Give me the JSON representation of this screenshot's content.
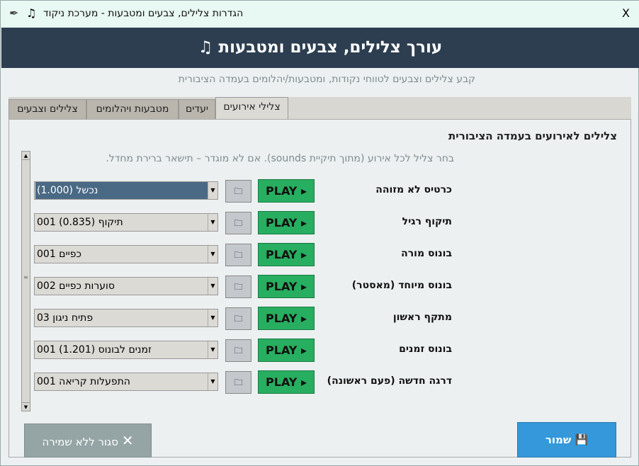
{
  "window": {
    "title": "הגדרות צלילים, צבעים ומטבעות - מערכת ניקוד",
    "close_label": "X"
  },
  "header": {
    "title": "עורך צלילים, צבעים ומטבעות"
  },
  "subtitle": "קבע צלילים וצבעים לטווחי נקודות, ומטבעות/יהלומים בעמדה הציבורית",
  "tabs": [
    {
      "label": "צלילים וצבעים"
    },
    {
      "label": "מטבעות ויהלומים"
    },
    {
      "label": "יעדים"
    },
    {
      "label": "צלילי אירועים",
      "active": true
    }
  ],
  "section": {
    "title": "צלילים לאירועים בעמדה הציבורית",
    "hint": ".אם לא מוגדר – תישאר ברירת מחדל .(sounds מתוך תיקיית) בחר צליל לכל אירוע"
  },
  "play_label": "PLAY ▸",
  "rows": [
    {
      "label": "כרטיס לא מזוהה",
      "value": "(1.000) נכשל"
    },
    {
      "label": "תיקוף רגיל",
      "value": "001 תיקוף (0.835)"
    },
    {
      "label": "בונוס מורה",
      "value": "001 כפיים"
    },
    {
      "label": "בונוס מיוחד (מאסטר)",
      "value": "002 סוערות כפיים"
    },
    {
      "label": "מתקף ראשון",
      "value": "03 פתיח ניגון"
    },
    {
      "label": "בונוס זמנים",
      "value": "001 זמנים לבונוס (1.201)"
    },
    {
      "label": "דרגה חדשה (פעם ראשונה)",
      "value": "001 התפעלות קריאה"
    }
  ],
  "footer": {
    "save_label": "שמור",
    "cancel_label": "סגור ללא שמירה"
  },
  "colors": {
    "header": "#2c3e50",
    "play": "#27ae60",
    "save": "#3498db",
    "cancel": "#95a5a6"
  }
}
